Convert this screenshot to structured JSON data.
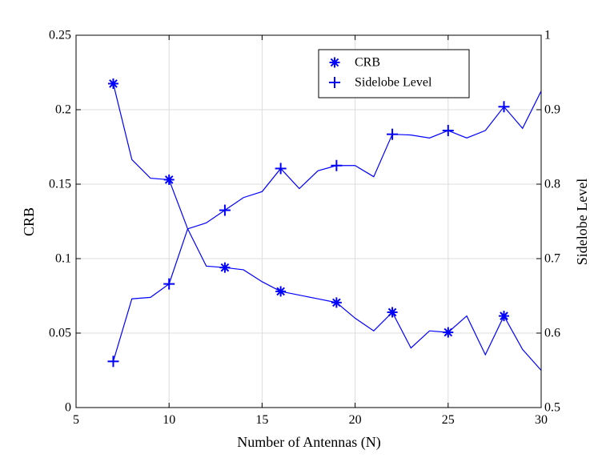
{
  "chart_data": {
    "type": "line",
    "title": "",
    "xlabel": "Number of Antennas (N)",
    "ylabel": "CRB",
    "y2label": "Sidelobe Level",
    "xlim": [
      5,
      30
    ],
    "ylim": [
      0,
      0.25
    ],
    "y2lim": [
      0.5,
      1
    ],
    "grid": true,
    "legend_position": "top-right",
    "x_ticks": [
      "5",
      "10",
      "15",
      "20",
      "25",
      "30"
    ],
    "y_ticks": [
      "0",
      "0.05",
      "0.1",
      "0.15",
      "0.2",
      "0.25"
    ],
    "y2_ticks": [
      "0.5",
      "0.6",
      "0.7",
      "0.8",
      "0.9",
      "1"
    ],
    "x_tick_values": [
      5,
      10,
      15,
      20,
      25,
      30
    ],
    "y_tick_values": [
      0,
      0.05,
      0.1,
      0.15,
      0.2,
      0.25
    ],
    "y2_tick_values": [
      0.5,
      0.6,
      0.7,
      0.8,
      0.9,
      1
    ],
    "x": [
      7,
      8,
      9,
      10,
      11,
      12,
      13,
      14,
      15,
      16,
      17,
      18,
      19,
      20,
      21,
      22,
      23,
      24,
      25,
      26,
      27,
      28,
      29,
      30
    ],
    "series": [
      {
        "name": "CRB",
        "axis": "left",
        "marker": "asterisk",
        "marker_x": [
          7,
          10,
          13,
          16,
          19,
          22,
          25,
          28
        ],
        "values": [
          0.2175,
          0.1665,
          0.154,
          0.153,
          0.12,
          0.095,
          0.094,
          0.0925,
          0.0845,
          0.078,
          0.0755,
          0.073,
          0.0705,
          0.06,
          0.0515,
          0.064,
          0.04,
          0.0515,
          0.0505,
          0.0615,
          0.0355,
          0.0615,
          0.039,
          0.025
        ]
      },
      {
        "name": "Sidelobe Level",
        "axis": "right",
        "marker": "plus",
        "marker_x": [
          7,
          10,
          13,
          16,
          19,
          22,
          25,
          28
        ],
        "values": [
          0.562,
          0.646,
          0.648,
          0.666,
          0.74,
          0.748,
          0.765,
          0.782,
          0.79,
          0.821,
          0.794,
          0.818,
          0.825,
          0.825,
          0.81,
          0.867,
          0.866,
          0.862,
          0.872,
          0.862,
          0.872,
          0.904,
          0.875,
          0.925
        ]
      }
    ]
  },
  "colors": {
    "series": "#0000ff",
    "axis": "#000000",
    "grid": "#dcdcdc"
  }
}
